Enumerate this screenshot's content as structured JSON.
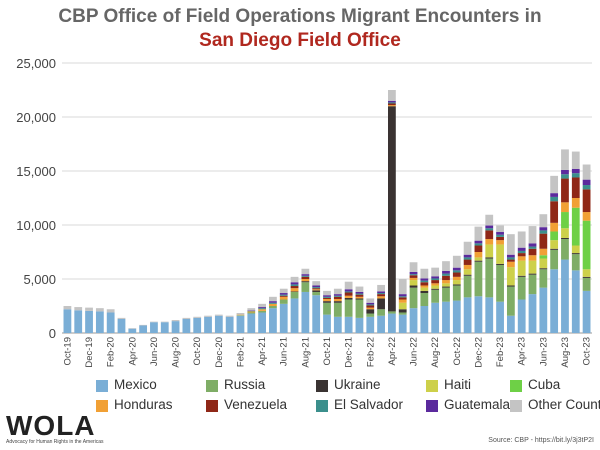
{
  "title_line1": "CBP Office of Field Operations Migrant Encounters in",
  "title_line2": "San Diego Field Office",
  "source": "Source: CBP - https://bit.ly/3j3tP2I",
  "logo": {
    "name": "WOLA",
    "tagline": "Advocacy for Human Rights in the Americas"
  },
  "colors": {
    "Mexico": "#7aaed6",
    "Russia": "#7fad66",
    "Ukraine": "#3a3332",
    "Haiti": "#cdd04a",
    "Cuba": "#6ed046",
    "Honduras": "#f1a035",
    "Venezuela": "#8f2717",
    "El Salvador": "#3b8f8c",
    "Guatemala": "#5b2a9d",
    "Other Countries": "#c4c4c4"
  },
  "chart_data": {
    "type": "bar",
    "stacked": true,
    "ylim": [
      0,
      25000
    ],
    "yticks": [
      "0",
      "5,000",
      "10,000",
      "15,000",
      "20,000",
      "25,000"
    ],
    "grid": true,
    "legend_position": "bottom",
    "categories": [
      "Oct-19",
      "Nov-19",
      "Dec-19",
      "Jan-20",
      "Feb-20",
      "Mar-20",
      "Apr-20",
      "May-20",
      "Jun-20",
      "Jul-20",
      "Aug-20",
      "Sep-20",
      "Oct-20",
      "Nov-20",
      "Dec-20",
      "Jan-21",
      "Feb-21",
      "Mar-21",
      "Apr-21",
      "May-21",
      "Jun-21",
      "Jul-21",
      "Aug-21",
      "Sep-21",
      "Oct-21",
      "Nov-21",
      "Dec-21",
      "Jan-22",
      "Feb-22",
      "Mar-22",
      "Apr-22",
      "May-22",
      "Jun-22",
      "Jul-22",
      "Aug-22",
      "Sep-22",
      "Oct-22",
      "Nov-22",
      "Dec-22",
      "Jan-23",
      "Feb-23",
      "Mar-23",
      "Apr-23",
      "May-23",
      "Jun-23",
      "Jul-23",
      "Aug-23",
      "Sep-23",
      "Oct-23"
    ],
    "xtick_labels": [
      "Oct-19",
      "Nov-19",
      "Dec-19",
      "Jan-20",
      "Feb-20",
      "Mar-20",
      "Apr-20",
      "May-20",
      "Jun-20",
      "Jul-20",
      "Aug-20",
      "Sep-20",
      "Oct-20",
      "Nov-20",
      "Dec-20",
      "Jan-21",
      "Feb-21",
      "Mar-21",
      "Apr-21",
      "May-21",
      "Jun-21",
      "Jul-21",
      "Aug-21",
      "Sep-21",
      "Oct-21",
      "Nov-21",
      "Dec-21",
      "Jan-22",
      "Feb-22",
      "Mar-22",
      "Apr-22",
      "May-22",
      "Jun-22",
      "Jul-22",
      "Aug-22",
      "Sep-22",
      "Oct-22",
      "Nov-22",
      "Dec-22",
      "Jan-23",
      "Feb-23",
      "Mar-23",
      "Apr-23",
      "May-23",
      "Jun-23",
      "Jul-23",
      "Aug-23",
      "Sep-23",
      "Oct-23"
    ],
    "series": [
      {
        "name": "Mexico",
        "values": [
          2200,
          2100,
          2050,
          2000,
          1900,
          1300,
          400,
          700,
          1000,
          1000,
          1100,
          1300,
          1400,
          1500,
          1600,
          1500,
          1600,
          1800,
          1900,
          2300,
          2700,
          3200,
          3800,
          3500,
          1700,
          1500,
          1500,
          1400,
          1500,
          1600,
          1800,
          1700,
          2300,
          2500,
          2800,
          2900,
          3000,
          3300,
          3400,
          3300,
          2900,
          1600,
          3100,
          3600,
          4200,
          5900,
          6800,
          5800,
          3900
        ]
      },
      {
        "name": "Russia",
        "values": [
          0,
          0,
          0,
          0,
          0,
          0,
          0,
          0,
          0,
          0,
          0,
          0,
          0,
          0,
          0,
          0,
          50,
          100,
          150,
          200,
          400,
          600,
          900,
          300,
          1100,
          1300,
          1600,
          1700,
          300,
          600,
          200,
          200,
          1900,
          1200,
          1200,
          1300,
          1400,
          2000,
          3200,
          3600,
          3400,
          2700,
          2100,
          1800,
          1700,
          1800,
          1900,
          1500,
          1200
        ]
      },
      {
        "name": "Ukraine",
        "values": [
          0,
          0,
          0,
          0,
          0,
          0,
          0,
          0,
          0,
          0,
          0,
          0,
          0,
          0,
          0,
          0,
          0,
          0,
          0,
          0,
          0,
          50,
          100,
          150,
          150,
          150,
          150,
          100,
          400,
          1000,
          19000,
          300,
          200,
          200,
          100,
          100,
          100,
          100,
          100,
          100,
          100,
          100,
          100,
          100,
          100,
          100,
          100,
          100,
          100
        ]
      },
      {
        "name": "Haiti",
        "values": [
          0,
          0,
          0,
          0,
          0,
          0,
          0,
          0,
          0,
          0,
          0,
          0,
          0,
          0,
          0,
          0,
          0,
          0,
          0,
          0,
          0,
          0,
          0,
          0,
          0,
          0,
          0,
          0,
          0,
          0,
          0,
          600,
          500,
          300,
          300,
          300,
          400,
          500,
          300,
          1200,
          1800,
          1700,
          1400,
          1200,
          900,
          800,
          900,
          700,
          700
        ]
      },
      {
        "name": "Cuba",
        "values": [
          0,
          0,
          0,
          0,
          0,
          0,
          0,
          0,
          0,
          0,
          0,
          0,
          0,
          0,
          0,
          0,
          0,
          0,
          0,
          0,
          0,
          0,
          0,
          0,
          0,
          0,
          0,
          0,
          0,
          0,
          0,
          0,
          0,
          0,
          0,
          0,
          0,
          0,
          0,
          0,
          0,
          0,
          0,
          0,
          300,
          800,
          1500,
          3500,
          4500
        ]
      },
      {
        "name": "Honduras",
        "values": [
          0,
          0,
          0,
          0,
          0,
          0,
          0,
          0,
          0,
          0,
          0,
          0,
          0,
          0,
          0,
          0,
          50,
          100,
          150,
          200,
          250,
          300,
          200,
          100,
          200,
          200,
          200,
          150,
          150,
          200,
          100,
          300,
          200,
          200,
          200,
          300,
          300,
          400,
          500,
          500,
          400,
          500,
          400,
          500,
          600,
          800,
          900,
          900,
          800
        ]
      },
      {
        "name": "Venezuela",
        "values": [
          0,
          0,
          0,
          0,
          0,
          0,
          0,
          0,
          0,
          0,
          0,
          0,
          0,
          0,
          0,
          0,
          0,
          0,
          0,
          0,
          100,
          200,
          200,
          100,
          100,
          200,
          300,
          200,
          200,
          200,
          150,
          200,
          250,
          300,
          300,
          400,
          400,
          500,
          600,
          800,
          300,
          200,
          300,
          600,
          1400,
          2000,
          2200,
          1900,
          2100
        ]
      },
      {
        "name": "El Salvador",
        "values": [
          0,
          0,
          0,
          0,
          0,
          0,
          0,
          0,
          0,
          0,
          0,
          0,
          0,
          0,
          0,
          0,
          0,
          50,
          100,
          100,
          100,
          150,
          100,
          100,
          100,
          100,
          100,
          100,
          100,
          100,
          100,
          100,
          100,
          150,
          150,
          200,
          200,
          200,
          200,
          200,
          200,
          200,
          200,
          200,
          300,
          400,
          400,
          400,
          400
        ]
      },
      {
        "name": "Guatemala",
        "values": [
          0,
          0,
          0,
          0,
          0,
          0,
          0,
          0,
          0,
          0,
          0,
          0,
          0,
          0,
          0,
          0,
          0,
          50,
          100,
          150,
          150,
          200,
          150,
          150,
          150,
          150,
          200,
          150,
          150,
          150,
          150,
          200,
          200,
          200,
          200,
          250,
          250,
          250,
          250,
          250,
          250,
          250,
          300,
          300,
          300,
          350,
          400,
          400,
          500
        ]
      },
      {
        "name": "Other Countries",
        "values": [
          300,
          300,
          300,
          300,
          300,
          100,
          50,
          50,
          50,
          50,
          100,
          100,
          100,
          100,
          100,
          100,
          150,
          200,
          300,
          400,
          400,
          500,
          500,
          400,
          400,
          500,
          700,
          500,
          400,
          600,
          1000,
          1400,
          900,
          900,
          800,
          900,
          1100,
          1200,
          1300,
          1000,
          600,
          1900,
          1500,
          1600,
          1200,
          1600,
          1900,
          1600,
          1400
        ]
      }
    ]
  }
}
